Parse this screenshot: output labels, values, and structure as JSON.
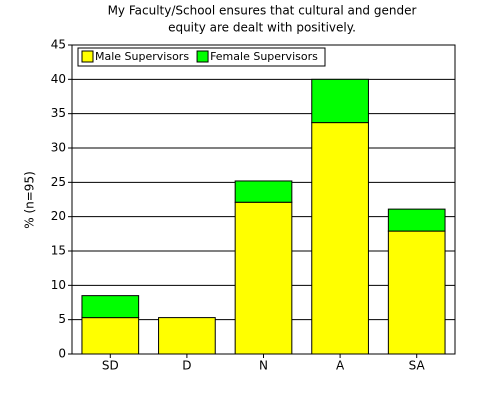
{
  "chart_data": {
    "type": "stacked-bar",
    "title": [
      "My Faculty/School ensures that cultural and gender",
      "equity are dealt with positively."
    ],
    "y_label": "% (n=95)",
    "categories": [
      "SD",
      "D",
      "N",
      "A",
      "SA"
    ],
    "series": [
      {
        "name": "Male Supervisors",
        "color": "#ffff00",
        "values": [
          5.3,
          5.3,
          22.1,
          33.7,
          17.9
        ]
      },
      {
        "name": "Female Supervisors",
        "color": "#00ff00",
        "values": [
          3.2,
          0,
          3.1,
          6.3,
          3.2
        ]
      }
    ],
    "ylim": [
      0,
      45
    ],
    "yticks": [
      0,
      5,
      10,
      15,
      20,
      25,
      30,
      35,
      40,
      45
    ],
    "grid": true
  }
}
